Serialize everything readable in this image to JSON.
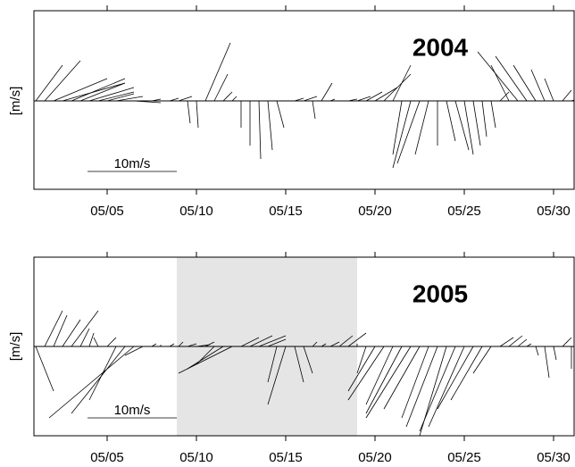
{
  "chart_data": [
    {
      "type": "stick",
      "title": "2004",
      "ylabel": "[m/s]",
      "scale": {
        "value": 10,
        "label": "10m/s"
      },
      "xlim": [
        0.9,
        31.15
      ],
      "ylim": [
        -9.9,
        10.1
      ],
      "xticks": [
        {
          "value": 5,
          "label": "05/05"
        },
        {
          "value": 10,
          "label": "05/10"
        },
        {
          "value": 15,
          "label": "05/15"
        },
        {
          "value": 20,
          "label": "05/20"
        },
        {
          "value": 25,
          "label": "05/25"
        },
        {
          "value": 30,
          "label": "05/30"
        }
      ],
      "x": [
        1.0,
        1.5,
        2.0,
        2.5,
        3.0,
        3.5,
        4.0,
        4.5,
        5.0,
        5.5,
        6.0,
        6.5,
        7.0,
        7.5,
        8.0,
        8.5,
        9.0,
        9.5,
        10.0,
        10.5,
        11.0,
        11.5,
        12.0,
        12.5,
        13.0,
        13.5,
        14.0,
        14.5,
        15.0,
        15.5,
        16.0,
        16.5,
        17.0,
        17.5,
        18.0,
        18.5,
        19.0,
        19.5,
        20.0,
        20.5,
        21.0,
        21.5,
        22.0,
        22.5,
        23.0,
        23.5,
        24.0,
        24.5,
        25.0,
        25.5,
        26.0,
        26.5,
        27.0,
        27.5,
        28.0,
        28.5,
        29.0,
        29.5,
        30.0,
        30.5,
        31.0
      ],
      "u": [
        3,
        4,
        6,
        7,
        6,
        5,
        5,
        4,
        3,
        3,
        3,
        3,
        2,
        1,
        0.5,
        1,
        1.5,
        0.3,
        0.2,
        2.8,
        1.5,
        1,
        0.5,
        0,
        0,
        0.2,
        0.5,
        0.8,
        0.5,
        1,
        1.5,
        0.3,
        1.2,
        0.5,
        0.5,
        1,
        1.5,
        1.8,
        2.5,
        3,
        2,
        -1,
        -2,
        -2.5,
        -1.5,
        0,
        1,
        1.5,
        1,
        0.8,
        0.5,
        0.5,
        1,
        -2,
        -4.5,
        -3.5,
        -2.5,
        -1.5,
        -1,
        1,
        1.5
      ],
      "v": [
        4,
        4.5,
        2.5,
        2,
        2.5,
        2,
        1.5,
        1,
        0.8,
        0.5,
        0,
        -0.2,
        0,
        0.2,
        0,
        0.3,
        0.5,
        -2.5,
        -3,
        6.5,
        3,
        1,
        0.5,
        -3,
        -5,
        -6.5,
        -5.5,
        -3,
        0,
        0.3,
        0.5,
        -2,
        2,
        0.2,
        0,
        0.2,
        0.5,
        1,
        1.5,
        3,
        4,
        -6,
        -7.5,
        -7,
        -6,
        -5,
        -4.5,
        -5.5,
        -6,
        -5,
        -4,
        -3,
        1,
        4,
        5.5,
        5,
        4,
        3.5,
        2.5,
        1.2,
        0.5
      ]
    },
    {
      "type": "stick",
      "title": "2005",
      "ylabel": "[m/s]",
      "scale": {
        "value": 10,
        "label": "10m/s"
      },
      "shade": [
        8.9,
        19.0
      ],
      "xlim": [
        0.9,
        31.15
      ],
      "ylim": [
        -10,
        10
      ],
      "xticks": [
        {
          "value": 5,
          "label": "05/05"
        },
        {
          "value": 10,
          "label": "05/10"
        },
        {
          "value": 15,
          "label": "05/15"
        },
        {
          "value": 20,
          "label": "05/20"
        },
        {
          "value": 25,
          "label": "05/25"
        },
        {
          "value": 30,
          "label": "05/30"
        }
      ],
      "x": [
        1.0,
        1.5,
        2.0,
        2.5,
        3.0,
        3.5,
        4.0,
        4.5,
        5.0,
        5.5,
        6.0,
        6.5,
        7.0,
        7.5,
        8.0,
        8.5,
        9.0,
        9.5,
        10.0,
        10.5,
        11.0,
        11.5,
        12.0,
        12.5,
        13.0,
        13.5,
        14.0,
        14.5,
        15.0,
        15.5,
        16.0,
        16.5,
        17.0,
        17.5,
        18.0,
        18.5,
        19.0,
        19.5,
        20.0,
        20.5,
        21.0,
        21.5,
        22.0,
        22.5,
        23.0,
        23.5,
        24.0,
        24.5,
        25.0,
        25.5,
        26.0,
        26.5,
        27.0,
        27.5,
        28.0,
        28.5,
        29.0,
        29.5,
        30.0,
        30.5,
        31.0
      ],
      "u": [
        2,
        2,
        1.5,
        2,
        3,
        1,
        0.5,
        -0.5,
        1,
        -3,
        -6,
        -9.5,
        -2,
        0.5,
        0,
        0.5,
        0.5,
        1,
        1.5,
        1,
        -2,
        -4,
        -6,
        2,
        2.5,
        3,
        2,
        -1,
        -2,
        1,
        1,
        0.5,
        0.5,
        1,
        1.5,
        2,
        0,
        -1,
        -3,
        -4,
        -3,
        -4,
        -5,
        -4,
        -3,
        -3.5,
        -3,
        -4,
        -4,
        -4,
        -3.5,
        -2,
        1.5,
        1.5,
        1,
        0.5,
        0.3,
        0.5,
        0.3,
        1,
        0
      ],
      "v": [
        -5,
        4,
        3.5,
        3,
        4,
        2,
        1.5,
        1,
        1,
        -6,
        -7.5,
        -8,
        -1,
        0.3,
        0.2,
        0.3,
        0.5,
        0.3,
        0.2,
        0.5,
        -2,
        -2.5,
        -3,
        1,
        1.2,
        1.2,
        0.8,
        -4,
        -6.5,
        -4,
        -3,
        0.5,
        0.3,
        0.5,
        1.2,
        1.5,
        0.3,
        -3,
        -5,
        -6,
        -6.5,
        -7.5,
        -8,
        -7,
        -8,
        -9,
        -10,
        -9.5,
        -9,
        -7,
        -6,
        -3,
        1,
        1.2,
        0.8,
        0.3,
        -1,
        -3.5,
        -1.5,
        1,
        -2.5
      ]
    }
  ]
}
